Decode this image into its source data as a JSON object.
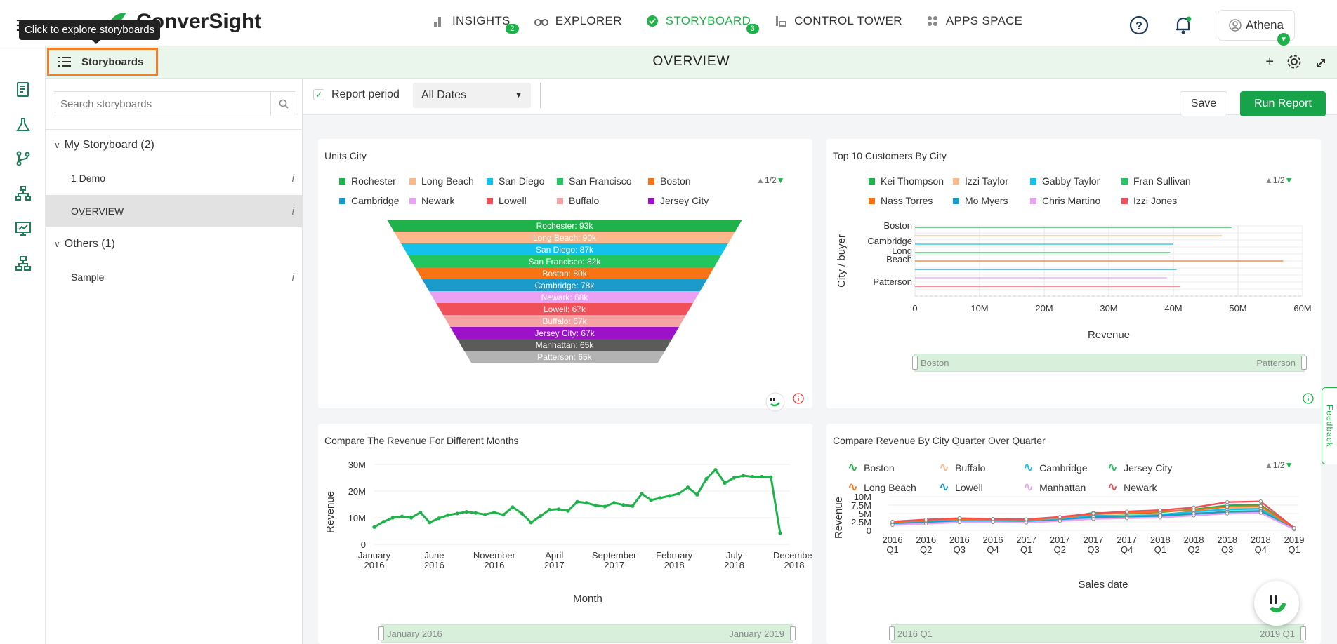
{
  "app": {
    "brand": "ConverSight",
    "tooltip": "Click to explore storyboards"
  },
  "nav": [
    {
      "label": "INSIGHTS",
      "badge": "2",
      "icon": "bar-chart-icon"
    },
    {
      "label": "EXPLORER",
      "badge": "",
      "icon": "binoculars-icon"
    },
    {
      "label": "STORYBOARD",
      "badge": "3",
      "icon": "storyboard-icon"
    },
    {
      "label": "CONTROL TOWER",
      "badge": "",
      "icon": "control-tower-icon"
    },
    {
      "label": "APPS SPACE",
      "badge": "",
      "icon": "apps-grid-icon"
    }
  ],
  "user": {
    "name": "Athena"
  },
  "subbar": {
    "storyboards_label": "Storyboards",
    "title": "OVERVIEW"
  },
  "side": {
    "search_placeholder": "Search storyboards",
    "group1": "My Storyboard (2)",
    "group1_items": [
      "1 Demo",
      "OVERVIEW"
    ],
    "group2": "Others (1)",
    "group2_items": [
      "Sample"
    ],
    "info": "i"
  },
  "toolbar": {
    "report_period": "Report period",
    "date_option": "All Dates",
    "save": "Save",
    "run": "Run Report"
  },
  "feedback": "Feedback",
  "colors": {
    "accent": "#1fb24a",
    "highlight": "#f07f2c"
  },
  "cards": {
    "units_city": {
      "title": "Units City",
      "pager": "1/2"
    },
    "top10": {
      "title": "Top 10 Customers By City",
      "pager": "1/2",
      "range_start": "Boston",
      "range_end": "Patterson"
    },
    "revenue_months": {
      "title": "Compare The Revenue For Different Months",
      "range_start": "January 2016",
      "range_end": "January 2019"
    },
    "revenue_quarter": {
      "title": "Compare Revenue By City Quarter Over Quarter",
      "pager": "1/2",
      "range_start": "2016 Q1",
      "range_end": "2019 Q1"
    }
  },
  "chart_data": [
    {
      "type": "funnel",
      "title": "Units City",
      "legend": [
        "Rochester",
        "Long Beach",
        "San Diego",
        "San Francisco",
        "Boston",
        "Cambridge",
        "Newark",
        "Lowell",
        "Buffalo",
        "Jersey City"
      ],
      "categories": [
        "Rochester",
        "Long Beach",
        "San Diego",
        "San Francisco",
        "Boston",
        "Cambridge",
        "Newark",
        "Lowell",
        "Buffalo",
        "Jersey City",
        "Manhattan",
        "Patterson"
      ],
      "labels": [
        "Rochester: 93k",
        "Long Beach: 90k",
        "San Diego: 87k",
        "San Francisco: 82k",
        "Boston: 80k",
        "Cambridge: 78k",
        "Newark: 68k",
        "Lowell: 67k",
        "Buffalo: 67k",
        "Jersey City: 67k",
        "Manhattan: 65k",
        "Patterson: 65k"
      ],
      "values": [
        93,
        90,
        87,
        82,
        80,
        78,
        68,
        67,
        67,
        67,
        65,
        65
      ],
      "colors": [
        "#1fb24a",
        "#fbb88c",
        "#14c1ea",
        "#22c55e",
        "#f97316",
        "#1a9bc9",
        "#e9a1f3",
        "#f0505a",
        "#f5a3a3",
        "#9b12c9",
        "#5b5b5b",
        "#b3b3b3"
      ]
    },
    {
      "type": "bar",
      "orientation": "horizontal",
      "title": "Top 10 Customers By City",
      "xlabel": "Revenue",
      "ylabel": "City / buyer",
      "xticks": [
        "0",
        "10M",
        "20M",
        "30M",
        "40M",
        "50M",
        "60M"
      ],
      "xlim": [
        0,
        60
      ],
      "y_tick_labels": [
        "Boston",
        "Cambridge",
        "Long",
        "Beach",
        "Patterson"
      ],
      "legend": [
        "Kei Thompson",
        "Izzi Taylor",
        "Gabby Taylor",
        "Fran Sullivan",
        "Nass Torres",
        "Mo Myers",
        "Chris Martino",
        "Izzi Jones"
      ],
      "colors": [
        "#1fb24a",
        "#fbb88c",
        "#14c1ea",
        "#22c55e",
        "#f97316",
        "#1a9bc9",
        "#e9a1f3",
        "#f0505a"
      ],
      "series_values_M": [
        49,
        47.5,
        40,
        39.5,
        57,
        40.5,
        39,
        41
      ]
    },
    {
      "type": "line",
      "title": "Compare The Revenue For Different Months",
      "xlabel": "Month",
      "ylabel": "Revenue",
      "yticks": [
        "0",
        "10M",
        "20M",
        "30M"
      ],
      "ylim": [
        0,
        30
      ],
      "xticks": [
        "January 2016",
        "June 2016",
        "November 2016",
        "April 2017",
        "September 2017",
        "February 2018",
        "July 2018",
        "December 2018"
      ],
      "values_M": [
        6.5,
        8.5,
        10,
        10.5,
        10,
        12,
        8.2,
        9.8,
        11,
        11.6,
        12.2,
        11.8,
        11.2,
        12,
        11.1,
        14,
        11.6,
        8.2,
        10.6,
        13,
        13.2,
        12.6,
        16,
        15.6,
        14.6,
        14.2,
        15.6,
        14.8,
        14.4,
        19,
        16.6,
        17.4,
        18.2,
        19,
        21.4,
        18.6,
        24.6,
        28,
        23,
        25,
        25.8,
        25.4,
        25.4,
        25.2,
        4.2
      ],
      "color": "#1fb24a"
    },
    {
      "type": "line",
      "title": "Compare Revenue By City Quarter Over Quarter",
      "xlabel": "Sales date",
      "ylabel": "Revenue",
      "yticks": [
        "0",
        "2.5M",
        "5M",
        "7.5M",
        "10M"
      ],
      "ylim": [
        0,
        10
      ],
      "xticks": [
        "2016 Q1",
        "2016 Q2",
        "2016 Q3",
        "2016 Q4",
        "2017 Q1",
        "2017 Q2",
        "2017 Q3",
        "2017 Q4",
        "2018 Q1",
        "2018 Q2",
        "2018 Q3",
        "2018 Q4",
        "2019 Q1"
      ],
      "legend": [
        "Boston",
        "Buffalo",
        "Cambridge",
        "Jersey City",
        "Long Beach",
        "Lowell",
        "Manhattan",
        "Newark"
      ],
      "colors": [
        "#1fb24a",
        "#fbb88c",
        "#14c1ea",
        "#22c55e",
        "#f97316",
        "#1a9bc9",
        "#e9a1f3",
        "#f0505a"
      ],
      "series": [
        {
          "name": "Boston",
          "values": [
            2.2,
            2.8,
            3.0,
            2.9,
            2.8,
            3.6,
            5.2,
            5.0,
            5.4,
            6.2,
            7.4,
            7.6,
            0.6
          ]
        },
        {
          "name": "Buffalo",
          "values": [
            2.0,
            2.5,
            3.1,
            3.0,
            2.9,
            3.4,
            4.2,
            4.6,
            4.8,
            5.2,
            6.4,
            6.8,
            0.5
          ]
        },
        {
          "name": "Cambridge",
          "values": [
            2.1,
            2.6,
            2.9,
            2.8,
            2.7,
            3.2,
            4.4,
            4.2,
            4.6,
            5.6,
            6.2,
            6.4,
            0.5
          ]
        },
        {
          "name": "Jersey City",
          "values": [
            1.8,
            2.4,
            2.6,
            2.7,
            2.6,
            3.0,
            3.8,
            4.0,
            4.2,
            4.8,
            5.6,
            5.8,
            0.4
          ]
        },
        {
          "name": "Long Beach",
          "values": [
            2.4,
            3.0,
            3.4,
            3.2,
            3.1,
            3.8,
            4.8,
            5.2,
            5.6,
            6.0,
            7.0,
            7.2,
            0.6
          ]
        },
        {
          "name": "Lowell",
          "values": [
            1.9,
            2.3,
            2.7,
            2.6,
            2.5,
            3.0,
            4.0,
            3.8,
            4.4,
            5.0,
            5.4,
            5.6,
            0.4
          ]
        },
        {
          "name": "Manhattan",
          "values": [
            1.6,
            2.0,
            2.4,
            2.4,
            2.3,
            2.8,
            3.4,
            3.6,
            3.8,
            4.4,
            5.0,
            5.2,
            0.3
          ]
        },
        {
          "name": "Newark",
          "values": [
            2.6,
            3.2,
            3.6,
            3.4,
            3.3,
            4.0,
            5.0,
            5.6,
            6.0,
            6.8,
            8.4,
            8.6,
            0.7
          ]
        }
      ]
    }
  ]
}
